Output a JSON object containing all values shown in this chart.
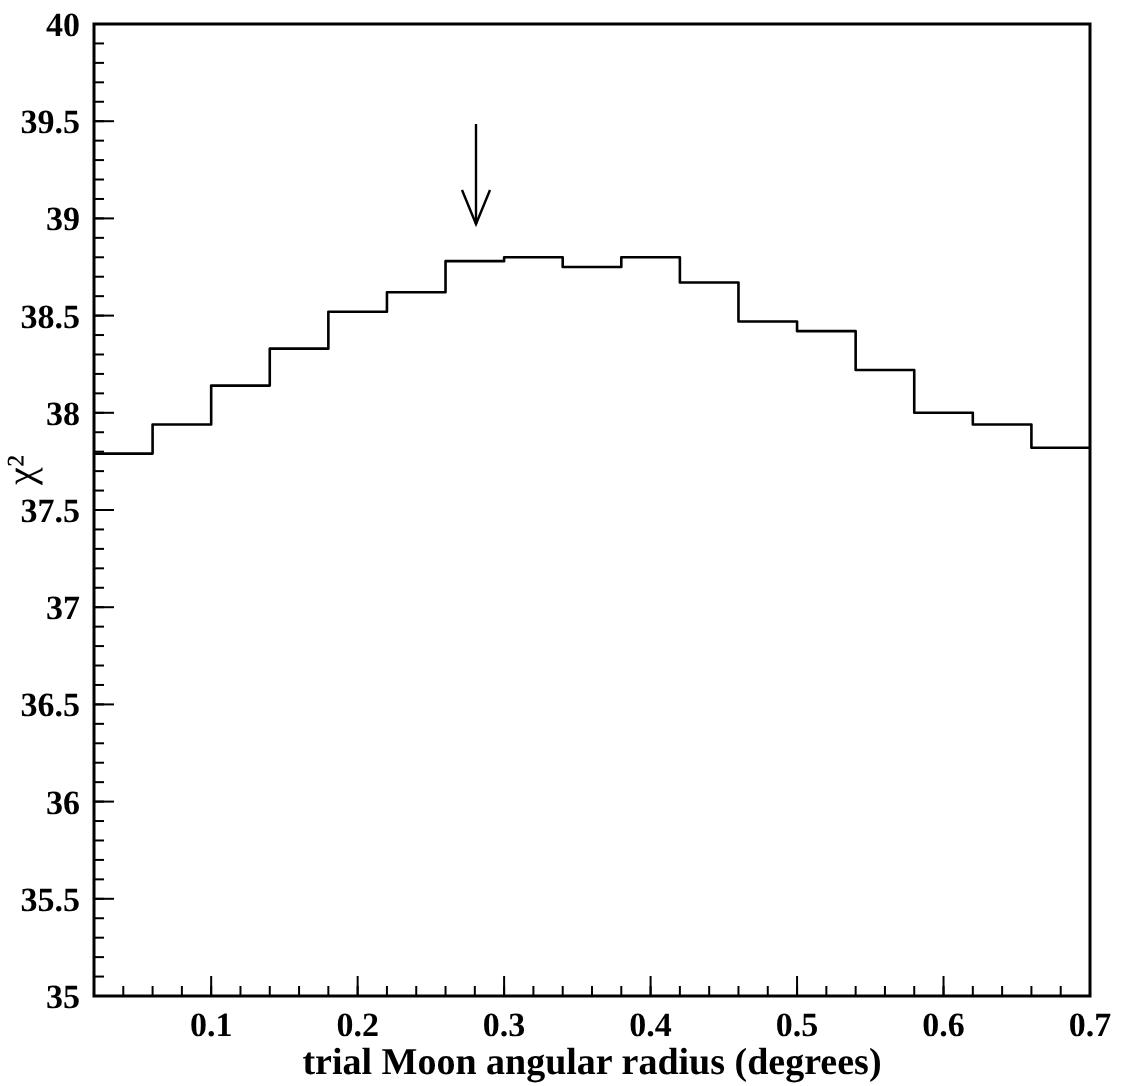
{
  "chart_data": {
    "type": "histogram",
    "xlabel": "trial Moon angular radius (degrees)",
    "ylabel": "χ²",
    "bins": [
      0.02,
      0.06,
      0.1,
      0.14,
      0.18,
      0.22,
      0.26,
      0.3,
      0.34,
      0.38,
      0.42,
      0.46,
      0.5,
      0.54,
      0.58,
      0.62,
      0.66,
      0.7
    ],
    "values": [
      37.79,
      37.94,
      38.14,
      38.33,
      38.52,
      38.62,
      38.78,
      38.8,
      38.75,
      38.8,
      38.67,
      38.47,
      38.42,
      38.22,
      38.0,
      37.94,
      37.82
    ],
    "color": "#000000",
    "xlim": [
      0.02,
      0.7
    ],
    "xticks": [
      0.1,
      0.2,
      0.3,
      0.4,
      0.5,
      0.6,
      0.7
    ],
    "ylim": [
      35,
      40
    ],
    "yticks": [
      35,
      35.5,
      36,
      36.5,
      37,
      37.5,
      38,
      38.5,
      39,
      39.5,
      40
    ]
  }
}
